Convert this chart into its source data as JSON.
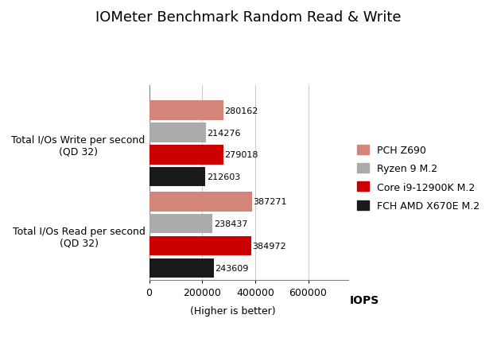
{
  "title": "IOMeter Benchmark Random Read & Write",
  "groups": [
    "Total I/Os Write per second\n(QD 32)",
    "Total I/Os Read per second\n(QD 32)"
  ],
  "series": [
    {
      "label": "PCH Z690",
      "color": "#D4857A",
      "values": [
        280162,
        387271
      ]
    },
    {
      "label": "Ryzen 9 M.2",
      "color": "#ABABAB",
      "values": [
        214276,
        238437
      ]
    },
    {
      "label": "Core i9-12900K M.2",
      "color": "#CC0000",
      "values": [
        279018,
        384972
      ]
    },
    {
      "label": "FCH AMD X670E M.2",
      "color": "#1A1A1A",
      "values": [
        212603,
        243609
      ]
    }
  ],
  "xlabel_iops": "IOPS",
  "xlabel_note": "(Higher is better)",
  "xlim": [
    0,
    750000
  ],
  "xticks": [
    0,
    200000,
    400000,
    600000
  ],
  "xtick_labels": [
    "0",
    "200000",
    "400000",
    "600000"
  ],
  "bar_height": 0.17,
  "value_fontsize": 8,
  "label_fontsize": 9,
  "title_fontsize": 13,
  "background_color": "#FFFFFF"
}
